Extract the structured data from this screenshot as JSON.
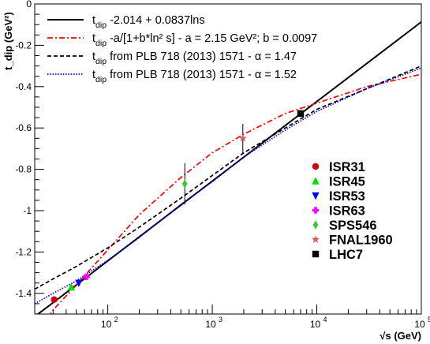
{
  "chart_data": {
    "type": "line",
    "title": "",
    "xlabel": "√s (GeV)",
    "ylabel": "t_dip (GeV²)",
    "x_scale": "log",
    "xlim": [
      20,
      100000
    ],
    "ylim": [
      -1.5,
      0
    ],
    "x_ticks": [
      {
        "value": 100,
        "label": "10",
        "sup": "2"
      },
      {
        "value": 1000,
        "label": "10",
        "sup": "3"
      },
      {
        "value": 10000,
        "label": "10",
        "sup": "4"
      },
      {
        "value": 100000,
        "label": "10",
        "sup": "5"
      }
    ],
    "y_ticks": [
      {
        "value": 0,
        "label": "0"
      },
      {
        "value": -0.2,
        "label": "-0.2"
      },
      {
        "value": -0.4,
        "label": "-0.4"
      },
      {
        "value": -0.6,
        "label": "-0.6"
      },
      {
        "value": -0.8,
        "label": "-0.8"
      },
      {
        "value": -1,
        "label": "-1"
      },
      {
        "value": -1.2,
        "label": "-1.2"
      },
      {
        "value": -1.4,
        "label": "-1.4"
      }
    ],
    "grid": false,
    "curve_legend": [
      {
        "text": "-2.014 + 0.0837lns",
        "color": "#000000",
        "dash": "solid"
      },
      {
        "text": "-a/[1+b*ln² s] - a = 2.15 GeV²; b = 0.0097",
        "color": "#ff0000",
        "dash": "dashdot"
      },
      {
        "text": "from PLB 718 (2013) 1571 - α = 1.47",
        "color": "#000000",
        "dash": "dashed"
      },
      {
        "text": "from PLB 718 (2013) 1571 - α = 1.52",
        "color": "#0000ff",
        "dash": "dotted"
      }
    ],
    "curve_prefix": "t",
    "curve_prefix_sub": "dip",
    "series": [
      {
        "name": "-2.014 + 0.0837lns",
        "color": "#000000",
        "style": "solid",
        "points": [
          [
            20,
            -1.512
          ],
          [
            30,
            -1.445
          ],
          [
            100,
            -1.243
          ],
          [
            1000,
            -0.857
          ],
          [
            10000,
            -0.472
          ],
          [
            100000,
            -0.087
          ]
        ]
      },
      {
        "name": "-a/[1+b*ln² s] - a = 2.15 GeV²; b = 0.0097",
        "color": "#ff0000",
        "style": "dashdot",
        "points": [
          [
            20,
            -1.61
          ],
          [
            30,
            -1.48
          ],
          [
            50,
            -1.36
          ],
          [
            100,
            -1.19
          ],
          [
            200,
            -1.02
          ],
          [
            500,
            -0.84
          ],
          [
            1000,
            -0.72
          ],
          [
            2000,
            -0.63
          ],
          [
            5000,
            -0.53
          ],
          [
            10000,
            -0.48
          ],
          [
            30000,
            -0.4
          ],
          [
            100000,
            -0.34
          ]
        ]
      },
      {
        "name": "from PLB 718 (2013) 1571 - α = 1.47",
        "color": "#000000",
        "style": "dashed",
        "points": [
          [
            20,
            -1.38
          ],
          [
            30,
            -1.33
          ],
          [
            50,
            -1.27
          ],
          [
            100,
            -1.18
          ],
          [
            200,
            -1.08
          ],
          [
            500,
            -0.94
          ],
          [
            1000,
            -0.83
          ],
          [
            2000,
            -0.72
          ],
          [
            5000,
            -0.6
          ],
          [
            10000,
            -0.51
          ],
          [
            30000,
            -0.41
          ],
          [
            100000,
            -0.3
          ]
        ]
      },
      {
        "name": "from PLB 718 (2013) 1571 - α = 1.52",
        "color": "#0000ff",
        "style": "dotted",
        "points": [
          [
            20,
            -1.45
          ],
          [
            30,
            -1.4
          ],
          [
            50,
            -1.34
          ],
          [
            100,
            -1.24
          ],
          [
            200,
            -1.13
          ],
          [
            500,
            -0.97
          ],
          [
            1000,
            -0.86
          ],
          [
            2000,
            -0.74
          ],
          [
            5000,
            -0.61
          ],
          [
            10000,
            -0.52
          ],
          [
            30000,
            -0.41
          ],
          [
            100000,
            -0.31
          ]
        ]
      }
    ],
    "points": [
      {
        "name": "ISR31",
        "x": 30.7,
        "y": -1.43,
        "err": 0.01,
        "color": "#cc0000",
        "marker": "circle"
      },
      {
        "name": "ISR45",
        "x": 44.7,
        "y": -1.37,
        "err": 0.01,
        "color": "#00e000",
        "marker": "triangle-up"
      },
      {
        "name": "ISR53",
        "x": 52.8,
        "y": -1.35,
        "err": 0.01,
        "color": "#0000ff",
        "marker": "triangle-down"
      },
      {
        "name": "ISR63",
        "x": 62.5,
        "y": -1.32,
        "err": 0.01,
        "color": "#ff00ff",
        "marker": "cross"
      },
      {
        "name": "SPS546",
        "x": 546,
        "y": -0.87,
        "err": 0.1,
        "color": "#33cc33",
        "marker": "diamond"
      },
      {
        "name": "FNAL1960",
        "x": 1960,
        "y": -0.65,
        "err": 0.07,
        "color": "#cc6666",
        "marker": "star"
      },
      {
        "name": "LHC7",
        "x": 7000,
        "y": -0.53,
        "err": 0.01,
        "color": "#000000",
        "marker": "square"
      }
    ],
    "legend_placement": "top-left (curves), center-right (data points)"
  }
}
